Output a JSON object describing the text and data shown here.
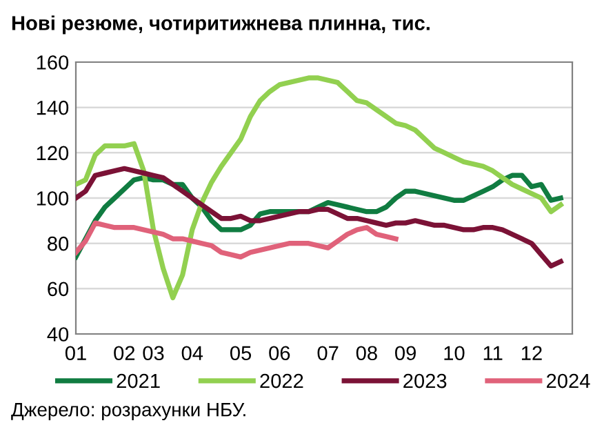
{
  "chart_data": {
    "type": "line",
    "title": "Нові резюме, чотиритижнева плинна, тис.",
    "categories": [
      "01",
      null,
      null,
      null,
      null,
      "02",
      null,
      null,
      "03",
      null,
      null,
      null,
      "04",
      null,
      null,
      null,
      null,
      "05",
      null,
      null,
      null,
      "06",
      null,
      null,
      null,
      null,
      "07",
      null,
      null,
      null,
      "08",
      null,
      null,
      null,
      "09",
      null,
      null,
      null,
      null,
      "10",
      null,
      null,
      null,
      "11",
      null,
      null,
      null,
      "12",
      null,
      null,
      null
    ],
    "ylim": [
      40,
      160
    ],
    "yticks": [
      40,
      60,
      80,
      100,
      120,
      140,
      160
    ],
    "grid": "y",
    "legend": "bottom",
    "marker": "none",
    "line_style": "solid",
    "series": [
      {
        "name": "2021",
        "color": "#107c41",
        "values": [
          74,
          82,
          90,
          96,
          100,
          104,
          108,
          109,
          108,
          108,
          106,
          106,
          100,
          96,
          90,
          86,
          86,
          86,
          88,
          93,
          94,
          94,
          94,
          94,
          94,
          96,
          98,
          97,
          96,
          95,
          94,
          94,
          96,
          100,
          103,
          103,
          102,
          101,
          100,
          99,
          99,
          101,
          103,
          105,
          108,
          110,
          110,
          105,
          106,
          99,
          100
        ]
      },
      {
        "name": "2022",
        "color": "#92d050",
        "values": [
          106,
          108,
          119,
          123,
          123,
          123,
          124,
          112,
          86,
          69,
          56,
          66,
          86,
          98,
          107,
          114,
          120,
          126,
          136,
          143,
          147,
          150,
          151,
          152,
          153,
          153,
          152,
          151,
          147,
          143,
          142,
          139,
          136,
          133,
          132,
          130,
          126,
          122,
          120,
          118,
          116,
          115,
          114,
          112,
          109,
          106,
          104,
          102,
          100,
          94,
          97
        ]
      },
      {
        "name": "2023",
        "color": "#7b1236",
        "values": [
          100,
          103,
          110,
          111,
          112,
          113,
          112,
          111,
          110,
          109,
          106,
          103,
          100,
          97,
          94,
          91,
          91,
          92,
          90,
          90,
          91,
          92,
          93,
          94,
          94,
          95,
          95,
          93,
          91,
          91,
          90,
          89,
          88,
          89,
          89,
          90,
          89,
          88,
          88,
          87,
          86,
          86,
          87,
          87,
          86,
          84,
          82,
          80,
          75,
          70,
          72
        ]
      },
      {
        "name": "2024",
        "color": "#e0627a",
        "values": [
          76,
          81,
          89,
          88,
          87,
          87,
          87,
          86,
          85,
          84,
          82,
          82,
          81,
          80,
          79,
          76,
          75,
          74,
          76,
          77,
          78,
          79,
          80,
          80,
          80,
          79,
          78,
          81,
          84,
          86,
          87,
          84,
          83,
          82,
          null,
          null,
          null,
          null,
          null,
          null,
          null,
          null,
          null,
          null,
          null,
          null,
          null,
          null,
          null,
          null,
          null
        ]
      }
    ],
    "annotations": [
      "Джерело: розрахунки НБУ."
    ]
  }
}
